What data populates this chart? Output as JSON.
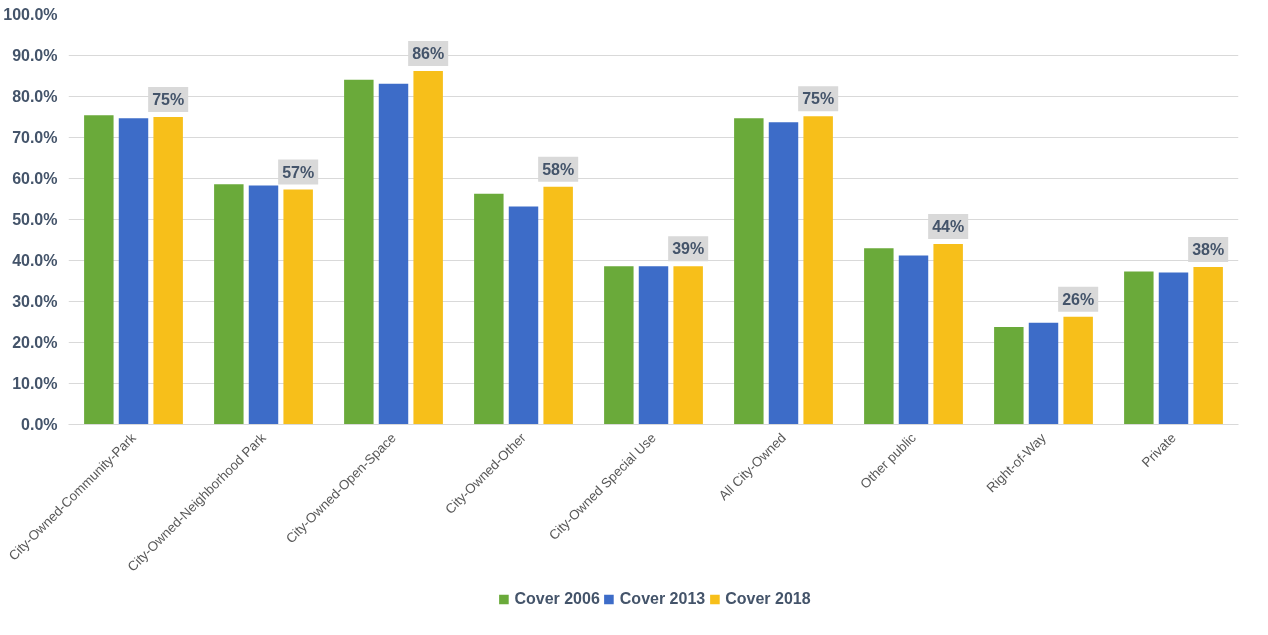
{
  "chart_data": {
    "type": "bar",
    "categories": [
      "City-Owned-Community-Park",
      "City-Owned-Neighborhood Park",
      "City-Owned-Open-Space",
      "City-Owned-Other",
      "City-Owned Special Use",
      "All City-Owned",
      "Other public",
      "Right-of-Way",
      "Private"
    ],
    "series": [
      {
        "name": "Cover 2006",
        "color": "#6aaa3a",
        "values": [
          75.4,
          58.6,
          84.1,
          56.3,
          38.6,
          74.7,
          43.0,
          23.8,
          37.3
        ]
      },
      {
        "name": "Cover 2013",
        "color": "#3d6cc8",
        "values": [
          74.7,
          58.3,
          83.1,
          53.2,
          38.6,
          73.7,
          41.2,
          24.8,
          37.1
        ]
      },
      {
        "name": "Cover 2018",
        "color": "#f7bf1a",
        "values": [
          75.0,
          57.3,
          86.2,
          58.0,
          38.6,
          75.2,
          44.0,
          26.3,
          38.4
        ],
        "value_labels": [
          "75%",
          "57%",
          "86%",
          "58%",
          "39%",
          "75%",
          "44%",
          "26%",
          "38%"
        ]
      }
    ],
    "ylim": [
      0,
      100
    ],
    "yticks": [
      {
        "value": 0,
        "label": "0.0%"
      },
      {
        "value": 10,
        "label": "10.0%"
      },
      {
        "value": 20,
        "label": "20.0%"
      },
      {
        "value": 30,
        "label": "30.0%"
      },
      {
        "value": 40,
        "label": "40.0%"
      },
      {
        "value": 50,
        "label": "50.0%"
      },
      {
        "value": 60,
        "label": "60.0%"
      },
      {
        "value": 70,
        "label": "70.0%"
      },
      {
        "value": 80,
        "label": "80.0%"
      },
      {
        "value": 90,
        "label": "90.0%"
      },
      {
        "value": 100,
        "label": "100.0%"
      }
    ],
    "grid": "y",
    "legend": "bottom"
  }
}
